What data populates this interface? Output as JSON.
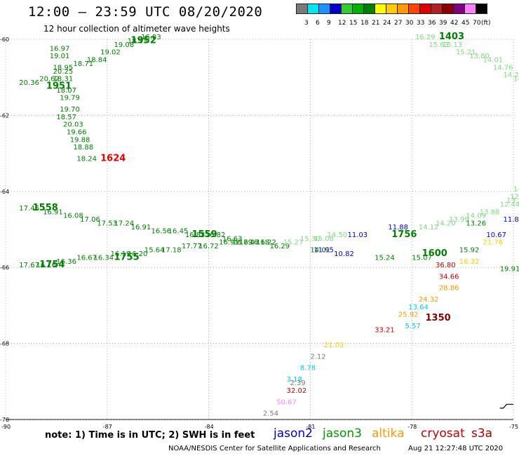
{
  "header": {
    "title": "12:00 – 23:59 UTC 08/20/2020",
    "subtitle": "12 hour collection of altimeter wave heights"
  },
  "scale": {
    "unit": "(ft)",
    "labels": [
      "3",
      "6",
      "9",
      "12",
      "15",
      "18",
      "21",
      "24",
      "27",
      "30",
      "33",
      "36",
      "39",
      "42",
      "45",
      "70"
    ],
    "colors": [
      "#7a7a7a",
      "#00e5ee",
      "#1e90ff",
      "#0000cd",
      "#32cd32",
      "#00b300",
      "#008000",
      "#ffff00",
      "#ffcc00",
      "#ff9900",
      "#ff4500",
      "#dd0000",
      "#b22222",
      "#8b0000",
      "#800080",
      "#ff80ff",
      "#000000"
    ]
  },
  "axes": {
    "lon_ticks": [
      "-90",
      "-87",
      "-84",
      "-81",
      "-78",
      "-75"
    ],
    "lat_ticks": [
      "-60",
      "-62",
      "-64",
      "-66",
      "-68",
      "-70"
    ]
  },
  "footer": {
    "note": "note: 1) Time is in UTC; 2) SWH is in feet",
    "sat1": "jason2",
    "sat2": "jason3",
    "sat3": "altika",
    "sat4": "cryosat",
    "sat5": "s3a",
    "credit": "NOAA/NESDIS Center for Satellite Applications and Research",
    "timestamp": "Aug 21 12:27:48 UTC 2020"
  },
  "colors": {
    "jason2": "#0000cd",
    "jason3": "#009900",
    "altika": "#ff9900",
    "cryosat": "#cc0000",
    "s3a": "#b00000",
    "grid": "#808080",
    "land": "#000000"
  },
  "map_data": {
    "time_labels": [
      {
        "t": "1952",
        "c": "#008000",
        "lon": -86.3,
        "lat": -60.1,
        "bold": true
      },
      {
        "t": "1951",
        "c": "#008000",
        "lon": -88.8,
        "lat": -61.3,
        "bold": true
      },
      {
        "t": "1624",
        "c": "#ee0000",
        "lon": -87.2,
        "lat": -63.2,
        "bold": true
      },
      {
        "t": "1403",
        "c": "#008000",
        "lon": -77.2,
        "lat": -60.0,
        "bold": true
      },
      {
        "t": "1558",
        "c": "#008000",
        "lon": -89.2,
        "lat": -64.5,
        "bold": true
      },
      {
        "t": "1559",
        "c": "#008000",
        "lon": -84.5,
        "lat": -65.2,
        "bold": true
      },
      {
        "t": "1755",
        "c": "#008000",
        "lon": -86.8,
        "lat": -65.8,
        "bold": true
      },
      {
        "t": "1754",
        "c": "#008000",
        "lon": -89.0,
        "lat": -66.0,
        "bold": true
      },
      {
        "t": "1756",
        "c": "#008000",
        "lon": -78.6,
        "lat": -65.2,
        "bold": true
      },
      {
        "t": "1600",
        "c": "#008000",
        "lon": -77.7,
        "lat": -65.7,
        "bold": true
      },
      {
        "t": "1350",
        "c": "#8b0000",
        "lon": -77.6,
        "lat": -67.4,
        "bold": true
      }
    ],
    "tracks": [
      {
        "name": "track-a",
        "c": "#008000",
        "pts": [
          [
            "16.97",
            -88.7,
            -60.3
          ],
          [
            "19.01",
            -88.7,
            -60.5
          ],
          [
            "18.95",
            -88.6,
            -60.8
          ],
          [
            "20.25",
            -88.6,
            -60.9
          ],
          [
            "20.62",
            -89.0,
            -61.1
          ],
          [
            "20.36",
            -89.6,
            -61.2
          ],
          [
            "18.31",
            -88.6,
            -61.1
          ],
          [
            "18.07",
            -88.5,
            -61.4
          ],
          [
            "19.79",
            -88.4,
            -61.6
          ],
          [
            "19.70",
            -88.4,
            -61.9
          ],
          [
            "18.57",
            -88.5,
            -62.1
          ],
          [
            "20.03",
            -88.3,
            -62.3
          ],
          [
            "19.66",
            -88.2,
            -62.5
          ],
          [
            "19.88",
            -88.1,
            -62.7
          ],
          [
            "18.88",
            -88.0,
            -62.9
          ],
          [
            "18.24",
            -87.9,
            -63.2
          ]
        ]
      },
      {
        "name": "track-b",
        "c": "#008000",
        "pts": [
          [
            "18.71",
            -88.0,
            -60.7
          ],
          [
            "18.84",
            -87.6,
            -60.6
          ],
          [
            "19.02",
            -87.2,
            -60.4
          ],
          [
            "19.08",
            -86.8,
            -60.2
          ],
          [
            "18.23",
            -86.4,
            -60.1
          ],
          [
            "16.83",
            -86.0,
            -60.0
          ]
        ]
      },
      {
        "name": "track-c",
        "c": "#7fd97f",
        "pts": [
          [
            "16.29",
            -77.9,
            -60.0
          ],
          [
            "15.63",
            -77.5,
            -60.2
          ],
          [
            "15.13",
            -77.1,
            -60.2
          ],
          [
            "15.21",
            -76.7,
            -60.4
          ],
          [
            "13.80",
            -76.3,
            -60.5
          ],
          [
            "14.01",
            -75.9,
            -60.6
          ],
          [
            "14.76",
            -75.6,
            -60.8
          ],
          [
            "14.23",
            -75.3,
            -61.0
          ],
          [
            "14.17",
            -75.0,
            -61.1
          ]
        ]
      },
      {
        "name": "track-d",
        "c": "#008000",
        "pts": [
          [
            "17.46",
            -89.6,
            -64.5
          ],
          [
            "16.91",
            -88.9,
            -64.6
          ],
          [
            "16.08",
            -88.3,
            -64.7
          ],
          [
            "17.06",
            -87.8,
            -64.8
          ],
          [
            "17.53",
            -87.3,
            -64.9
          ],
          [
            "17.24",
            -86.8,
            -64.9
          ],
          [
            "16.91",
            -86.3,
            -65.0
          ],
          [
            "16.56",
            -85.7,
            -65.1
          ],
          [
            "16.45",
            -85.2,
            -65.1
          ],
          [
            "16.83",
            -84.7,
            -65.2
          ],
          [
            "16.82",
            -84.1,
            -65.2
          ],
          [
            "16.63",
            -83.6,
            -65.3
          ],
          [
            "16.47",
            -83.1,
            -65.4
          ],
          [
            "16.22",
            -82.6,
            -65.4
          ],
          [
            "16.29",
            -82.2,
            -65.5
          ]
        ]
      },
      {
        "name": "track-e",
        "c": "#008000",
        "pts": [
          [
            "17.67",
            -89.6,
            -66.0
          ],
          [
            "16.16",
            -89.1,
            -66.0
          ],
          [
            "16.36",
            -88.5,
            -65.9
          ],
          [
            "16.67",
            -87.9,
            -65.8
          ],
          [
            "16.34",
            -87.4,
            -65.8
          ],
          [
            "16.19",
            -86.9,
            -65.7
          ],
          [
            "16.20",
            -86.4,
            -65.7
          ],
          [
            "15.64",
            -85.9,
            -65.6
          ],
          [
            "17.18",
            -85.4,
            -65.6
          ],
          [
            "17.77",
            -84.8,
            -65.5
          ],
          [
            "16.72",
            -84.3,
            -65.5
          ],
          [
            "16.91",
            -83.7,
            -65.4
          ],
          [
            "16.29",
            -83.3,
            -65.4
          ],
          [
            "16.18",
            -82.8,
            -65.4
          ]
        ]
      },
      {
        "name": "track-f",
        "c": "#7fd97f",
        "pts": [
          [
            "15.27",
            -81.8,
            -65.4
          ],
          [
            "15.30",
            -81.3,
            -65.3
          ],
          [
            "15.08",
            -80.9,
            -65.3
          ],
          [
            "14.50",
            -80.5,
            -65.2
          ],
          [
            "14.12",
            -77.8,
            -65.0
          ],
          [
            "14.20",
            -77.3,
            -64.9
          ],
          [
            "13.99",
            -76.9,
            -64.8
          ],
          [
            "14.09",
            -76.4,
            -64.7
          ],
          [
            "13.88",
            -76.0,
            -64.6
          ],
          [
            "12.44",
            -75.4,
            -64.4
          ],
          [
            "13.37",
            -75.2,
            -64.3
          ],
          [
            "12.49",
            -75.1,
            -64.2
          ],
          [
            "14.11",
            -75.0,
            -64.0
          ]
        ]
      },
      {
        "name": "track-g",
        "c": "#008000",
        "pts": [
          [
            "14.01",
            -81.0,
            -65.6
          ],
          [
            "15.24",
            -79.1,
            -65.8
          ],
          [
            "15.07",
            -78.0,
            -65.8
          ],
          [
            "15.92",
            -76.6,
            -65.6
          ],
          [
            "19.91",
            -75.4,
            -66.1
          ],
          [
            "13.26",
            -76.4,
            -64.9
          ]
        ]
      },
      {
        "name": "track-h",
        "c": "#0000cd",
        "pts": [
          [
            "11.03",
            -79.9,
            -65.2
          ],
          [
            "11.88",
            -78.7,
            -65.0
          ],
          [
            "11.95",
            -80.9,
            -65.6
          ],
          [
            "10.82",
            -80.3,
            -65.7
          ],
          [
            "10.67",
            -75.8,
            -65.2
          ],
          [
            "11.80",
            -75.3,
            -64.8
          ]
        ]
      },
      {
        "name": "track-i",
        "c": "#ffcc00",
        "pts": [
          [
            "16.32",
            -76.6,
            -65.9
          ],
          [
            "21.76",
            -75.9,
            -65.4
          ],
          [
            "21.03",
            -80.6,
            -68.1
          ]
        ]
      },
      {
        "name": "track-j",
        "c": "#cc0000",
        "pts": [
          [
            "36.80",
            -77.3,
            -66.0
          ],
          [
            "34.66",
            -77.2,
            -66.3
          ],
          [
            "33.21",
            -79.1,
            -67.7
          ],
          [
            "32.02",
            -81.7,
            -69.3
          ]
        ]
      },
      {
        "name": "track-k",
        "c": "#ff9900",
        "pts": [
          [
            "28.86",
            -77.2,
            -66.6
          ],
          [
            "24.32",
            -77.8,
            -66.9
          ],
          [
            "25.92",
            -78.4,
            -67.3
          ]
        ]
      },
      {
        "name": "track-l",
        "c": "#00ccff",
        "pts": [
          [
            "13.64",
            -78.1,
            -67.1
          ],
          [
            "5.57",
            -78.2,
            -67.6
          ],
          [
            "8.78",
            -81.3,
            -68.7
          ],
          [
            "3.18",
            -81.7,
            -69.0
          ]
        ]
      },
      {
        "name": "track-m",
        "c": "#7a7a7a",
        "pts": [
          [
            "2.12",
            -81.0,
            -68.4
          ],
          [
            "2.39",
            -81.6,
            -69.1
          ],
          [
            "2.54",
            -82.4,
            -69.9
          ]
        ]
      },
      {
        "name": "track-n",
        "c": "#ff80ff",
        "pts": [
          [
            "50.67",
            -82.0,
            -69.6
          ]
        ]
      }
    ],
    "land": [
      [
        -75.4,
        -69.7
      ],
      [
        -75.3,
        -69.7
      ],
      [
        -75.2,
        -69.6
      ],
      [
        -75.0,
        -69.6
      ]
    ]
  }
}
